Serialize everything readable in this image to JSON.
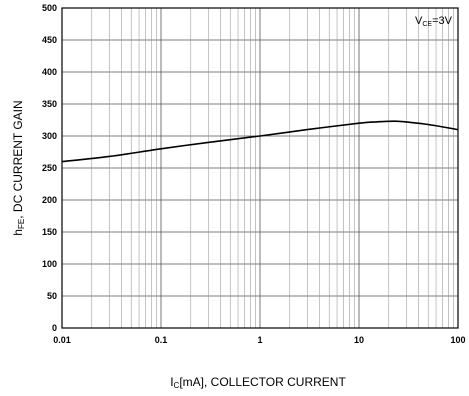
{
  "chart_data": {
    "type": "line",
    "x_scale": "log",
    "xlim": [
      0.01,
      100
    ],
    "ylim": [
      0,
      500
    ],
    "grid": true,
    "xlabel": {
      "main": "I",
      "sub": "C",
      "rest": "[mA], COLLECTOR CURRENT"
    },
    "ylabel": {
      "main": "h",
      "sub": "FE",
      "rest": ", DC CURRENT GAIN"
    },
    "annotation": {
      "main": "V",
      "sub": "CE",
      "rest": "=3V"
    },
    "x_ticks": [
      "0.01",
      "0.1",
      "1",
      "10",
      "100"
    ],
    "y_ticks": [
      "0",
      "50",
      "100",
      "150",
      "200",
      "250",
      "300",
      "350",
      "400",
      "450",
      "500"
    ],
    "series": [
      {
        "x": [
          0.01,
          0.03,
          0.1,
          0.3,
          1,
          3,
          10,
          15,
          20,
          25,
          30,
          50,
          100
        ],
        "y": [
          260,
          268,
          280,
          290,
          300,
          310,
          320,
          322,
          323,
          323,
          322,
          318,
          310
        ]
      }
    ]
  }
}
